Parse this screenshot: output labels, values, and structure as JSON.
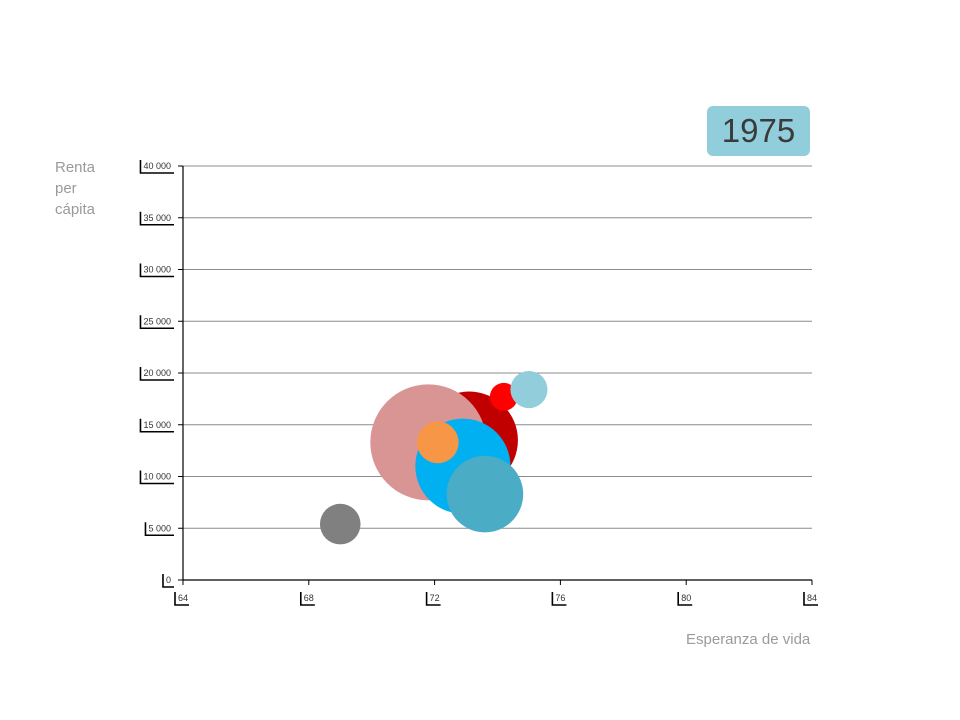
{
  "slide": {
    "year": "1975",
    "ylabel_lines": [
      "Renta",
      "per",
      "cápita"
    ],
    "xlabel": "Esperanza de vida"
  },
  "chart_data": {
    "type": "scatter",
    "subtype": "bubble",
    "title": "",
    "xlabel": "Esperanza de vida",
    "ylabel": "Renta per cápita",
    "xlim": [
      64,
      84
    ],
    "ylim": [
      0,
      40000
    ],
    "x_ticks": [
      {
        "value": 64,
        "label": "64"
      },
      {
        "value": 68,
        "label": "68"
      },
      {
        "value": 72,
        "label": "72"
      },
      {
        "value": 76,
        "label": "76"
      },
      {
        "value": 80,
        "label": "80"
      },
      {
        "value": 84,
        "label": "84"
      }
    ],
    "y_ticks": [
      {
        "value": 0,
        "label": "0"
      },
      {
        "value": 5000,
        "label": "5 000"
      },
      {
        "value": 10000,
        "label": "10 000"
      },
      {
        "value": 15000,
        "label": "15 000"
      },
      {
        "value": 20000,
        "label": "20 000"
      },
      {
        "value": 25000,
        "label": "25 000"
      },
      {
        "value": 30000,
        "label": "30 000"
      },
      {
        "value": 35000,
        "label": "35 000"
      },
      {
        "value": 40000,
        "label": "40 000"
      }
    ],
    "grid": "horizontal",
    "legend": "none",
    "bubble_size_scale": "relative radius (largest = 1.0)",
    "points": [
      {
        "x": 73.1,
        "y": 13500,
        "size": 0.84,
        "color": "#c00000"
      },
      {
        "x": 71.8,
        "y": 13300,
        "size": 1.0,
        "color": "#d99594"
      },
      {
        "x": 72.9,
        "y": 11000,
        "size": 0.82,
        "color": "#00b0f0"
      },
      {
        "x": 73.6,
        "y": 8300,
        "size": 0.66,
        "color": "#4bacc6"
      },
      {
        "x": 72.1,
        "y": 13300,
        "size": 0.36,
        "color": "#f79646"
      },
      {
        "x": 74.2,
        "y": 17700,
        "size": 0.24,
        "color": "#ff0000"
      },
      {
        "x": 75.0,
        "y": 18400,
        "size": 0.32,
        "color": "#92cddc"
      },
      {
        "x": 69.0,
        "y": 5400,
        "size": 0.35,
        "color": "#808080"
      }
    ]
  }
}
